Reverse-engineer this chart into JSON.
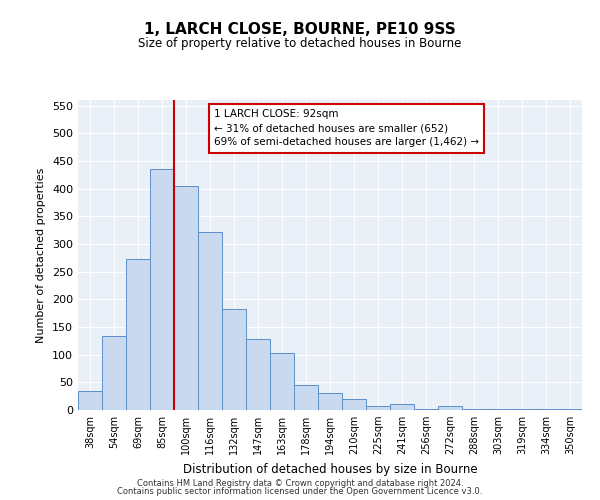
{
  "title": "1, LARCH CLOSE, BOURNE, PE10 9SS",
  "subtitle": "Size of property relative to detached houses in Bourne",
  "xlabel": "Distribution of detached houses by size in Bourne",
  "ylabel": "Number of detached properties",
  "bar_labels": [
    "38sqm",
    "54sqm",
    "69sqm",
    "85sqm",
    "100sqm",
    "116sqm",
    "132sqm",
    "147sqm",
    "163sqm",
    "178sqm",
    "194sqm",
    "210sqm",
    "225sqm",
    "241sqm",
    "256sqm",
    "272sqm",
    "288sqm",
    "303sqm",
    "319sqm",
    "334sqm",
    "350sqm"
  ],
  "bar_values": [
    35,
    133,
    272,
    435,
    405,
    322,
    183,
    128,
    103,
    45,
    30,
    20,
    8,
    10,
    2,
    8,
    2,
    2,
    2,
    2,
    2
  ],
  "bar_color": "#c9d9ef",
  "bar_edge_color": "#5b8fc9",
  "property_line_x": 3.5,
  "property_line_color": "#cc0000",
  "annotation_line1": "1 LARCH CLOSE: 92sqm",
  "annotation_line2": "← 31% of detached houses are smaller (652)",
  "annotation_line3": "69% of semi-detached houses are larger (1,462) →",
  "annotation_box_color": "#ffffff",
  "annotation_box_edge": "#cc0000",
  "ylim": [
    0,
    560
  ],
  "yticks": [
    0,
    50,
    100,
    150,
    200,
    250,
    300,
    350,
    400,
    450,
    500,
    550
  ],
  "footer1": "Contains HM Land Registry data © Crown copyright and database right 2024.",
  "footer2": "Contains public sector information licensed under the Open Government Licence v3.0.",
  "bg_color": "#eaf0f8",
  "fig_bg_color": "#ffffff"
}
